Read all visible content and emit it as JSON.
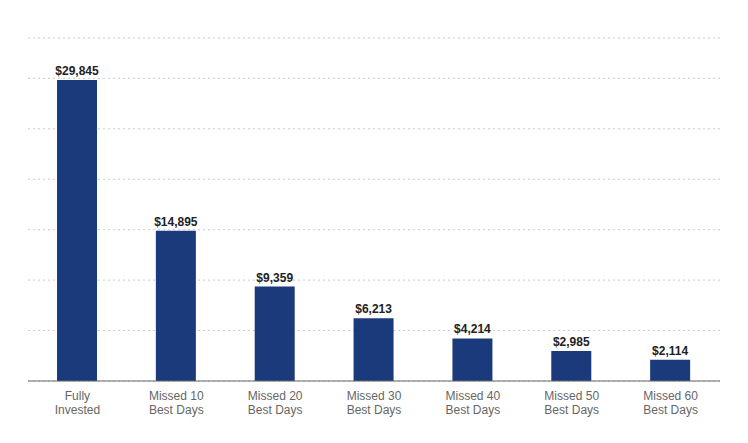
{
  "chart_data": {
    "type": "bar",
    "categories": [
      "Fully\nInvested",
      "Missed 10\nBest Days",
      "Missed 20\nBest Days",
      "Missed 30\nBest Days",
      "Missed 40\nBest Days",
      "Missed 50\nBest Days",
      "Missed 60\nBest Days"
    ],
    "values": [
      29845,
      14895,
      9359,
      6213,
      4214,
      2985,
      2114
    ],
    "value_labels": [
      "$29,845",
      "$14,895",
      "$9,359",
      "$6,213",
      "$4,214",
      "$2,985",
      "$2,114"
    ],
    "color": "#1a3a7c",
    "ylim": [
      0,
      34000
    ],
    "yticks": [
      0,
      5000,
      10000,
      15000,
      20000,
      25000,
      30000,
      34000
    ],
    "grid": true,
    "data_labels": true,
    "tick_labels": "x"
  }
}
